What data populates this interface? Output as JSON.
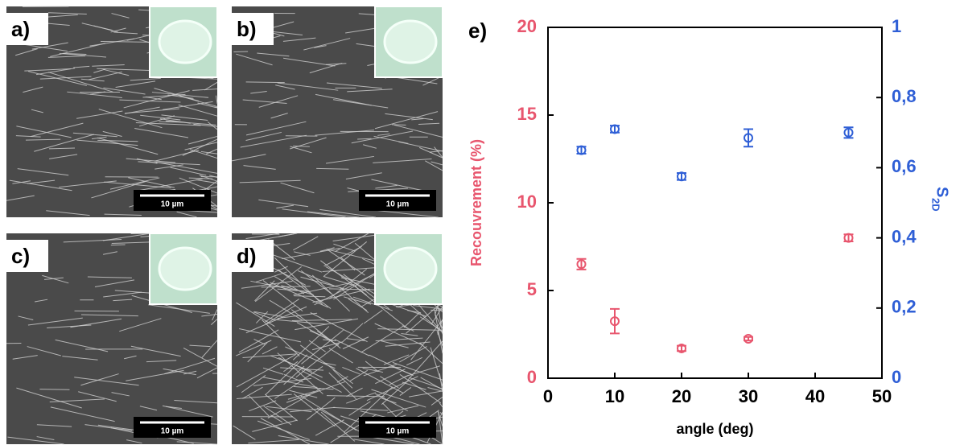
{
  "panels": [
    {
      "label": "a)",
      "scale_bar": "10 µm"
    },
    {
      "label": "b)",
      "scale_bar": "10 µm"
    },
    {
      "label": "c)",
      "scale_bar": "10 µm"
    },
    {
      "label": "d)",
      "scale_bar": "10 µm"
    }
  ],
  "chart_label": "e)",
  "chart_data": {
    "type": "scatter",
    "xlabel": "angle (deg)",
    "ylabel": "Recouvrement (%)",
    "y2label": "S",
    "y2label_sub": "2D",
    "xlim": [
      0,
      50
    ],
    "xticks": [
      0,
      10,
      20,
      30,
      40,
      50
    ],
    "ylim": [
      0,
      20
    ],
    "yticks": [
      0,
      5,
      10,
      15,
      20
    ],
    "y2lim": [
      0,
      1
    ],
    "y2ticks": [
      0,
      {
        "value": 0.2,
        "label": "0,2"
      },
      {
        "value": 0.4,
        "label": "0,4"
      },
      {
        "value": 0.6,
        "label": "0,6"
      },
      {
        "value": 0.8,
        "label": "0,8"
      },
      1
    ],
    "series": [
      {
        "name": "Recouvrement",
        "color": "#e8566e",
        "x": [
          5,
          10,
          20,
          30,
          45
        ],
        "values": [
          6.5,
          3.25,
          1.7,
          2.25,
          8.0
        ],
        "errors": [
          0.3,
          0.7,
          0.15,
          0.1,
          0.2
        ]
      },
      {
        "name": "S2D",
        "color": "#2f5fd6",
        "axis": "y2",
        "x": [
          5,
          10,
          20,
          30,
          45
        ],
        "values": [
          0.65,
          0.71,
          0.575,
          0.685,
          0.7
        ],
        "errors": [
          0.01,
          0.01,
          0.01,
          0.025,
          0.015
        ]
      }
    ]
  }
}
